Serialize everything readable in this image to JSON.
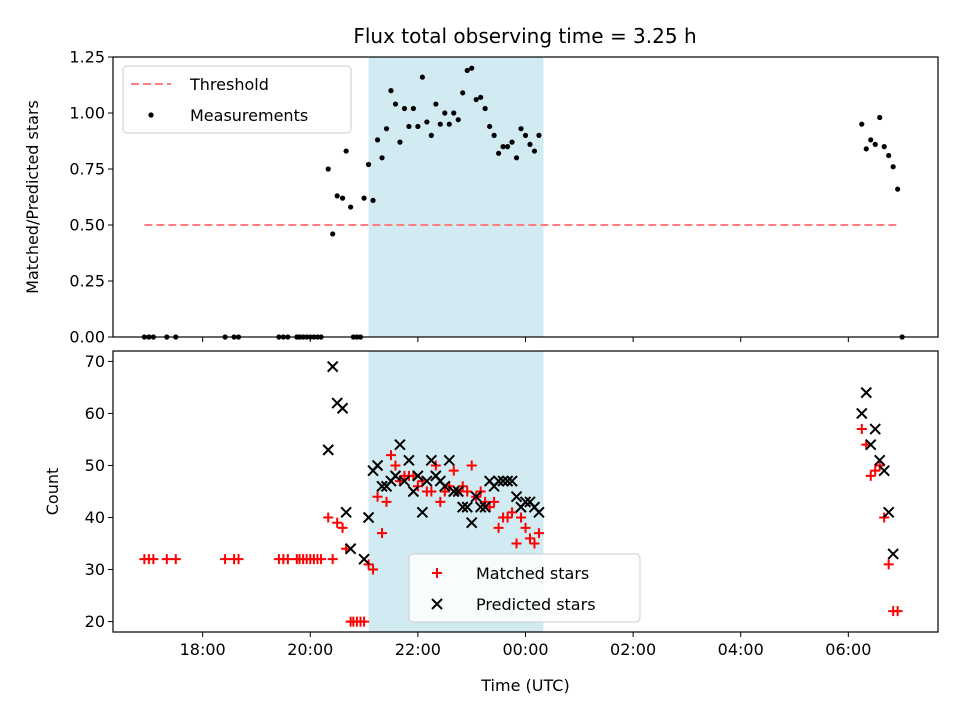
{
  "title": "Flux total observing time = 3.25 h",
  "colors": {
    "threshold": "#ff7f7f",
    "measurement": "#000000",
    "matched": "#ff0000",
    "predicted": "#000000",
    "span_fill": "#add8e6"
  },
  "chart_data": [
    {
      "type": "scatter",
      "ylabel": "Matched/Predicted stars",
      "xlim": [
        "16:20",
        "07:40"
      ],
      "ylim": [
        0,
        1.25
      ],
      "yticks": [
        "0.00",
        "0.25",
        "0.50",
        "0.75",
        "1.00",
        "1.25"
      ],
      "legend": {
        "location": "top-left",
        "entries": [
          "Threshold",
          "Measurements"
        ]
      },
      "highlight_span": [
        "21:05",
        "00:20"
      ],
      "threshold": {
        "name": "Threshold",
        "y": 0.5,
        "x_range": [
          "16:55",
          "06:55"
        ]
      },
      "series": [
        {
          "name": "Measurements",
          "marker": "dot",
          "points": [
            [
              "16:55",
              0
            ],
            [
              "17:00",
              0
            ],
            [
              "17:05",
              0
            ],
            [
              "17:20",
              0
            ],
            [
              "17:30",
              0
            ],
            [
              "18:25",
              0
            ],
            [
              "18:35",
              0
            ],
            [
              "18:40",
              0
            ],
            [
              "19:25",
              0
            ],
            [
              "19:30",
              0
            ],
            [
              "19:35",
              0
            ],
            [
              "19:45",
              0
            ],
            [
              "19:48",
              0
            ],
            [
              "19:52",
              0
            ],
            [
              "19:56",
              0
            ],
            [
              "20:00",
              0
            ],
            [
              "20:04",
              0
            ],
            [
              "20:08",
              0
            ],
            [
              "20:12",
              0
            ],
            [
              "20:20",
              0.75
            ],
            [
              "20:25",
              0.46
            ],
            [
              "20:30",
              0.63
            ],
            [
              "20:36",
              0.62
            ],
            [
              "20:40",
              0.83
            ],
            [
              "20:45",
              0.58
            ],
            [
              "20:48",
              0
            ],
            [
              "20:52",
              0
            ],
            [
              "20:56",
              0
            ],
            [
              "21:00",
              0.62
            ],
            [
              "21:05",
              0.77
            ],
            [
              "21:10",
              0.61
            ],
            [
              "21:15",
              0.88
            ],
            [
              "21:20",
              0.8
            ],
            [
              "21:25",
              0.93
            ],
            [
              "21:30",
              1.1
            ],
            [
              "21:35",
              1.04
            ],
            [
              "21:40",
              0.87
            ],
            [
              "21:45",
              1.02
            ],
            [
              "21:50",
              0.94
            ],
            [
              "21:55",
              1.02
            ],
            [
              "22:00",
              0.94
            ],
            [
              "22:05",
              1.16
            ],
            [
              "22:10",
              0.96
            ],
            [
              "22:15",
              0.9
            ],
            [
              "22:20",
              1.04
            ],
            [
              "22:25",
              0.95
            ],
            [
              "22:30",
              1.0
            ],
            [
              "22:35",
              0.95
            ],
            [
              "22:40",
              1.0
            ],
            [
              "22:45",
              0.97
            ],
            [
              "22:50",
              1.09
            ],
            [
              "22:55",
              1.19
            ],
            [
              "23:00",
              1.2
            ],
            [
              "23:05",
              1.06
            ],
            [
              "23:10",
              1.07
            ],
            [
              "23:15",
              1.02
            ],
            [
              "23:20",
              0.94
            ],
            [
              "23:25",
              0.9
            ],
            [
              "23:30",
              0.82
            ],
            [
              "23:35",
              0.85
            ],
            [
              "23:40",
              0.85
            ],
            [
              "23:45",
              0.87
            ],
            [
              "23:50",
              0.8
            ],
            [
              "23:55",
              0.93
            ],
            [
              "00:00",
              0.9
            ],
            [
              "00:05",
              0.86
            ],
            [
              "00:10",
              0.83
            ],
            [
              "00:15",
              0.9
            ],
            [
              "06:15",
              0.95
            ],
            [
              "06:20",
              0.84
            ],
            [
              "06:25",
              0.88
            ],
            [
              "06:30",
              0.86
            ],
            [
              "06:35",
              0.98
            ],
            [
              "06:40",
              0.85
            ],
            [
              "06:45",
              0.81
            ],
            [
              "06:50",
              0.76
            ],
            [
              "06:55",
              0.66
            ],
            [
              "07:00",
              0
            ]
          ]
        }
      ]
    },
    {
      "type": "scatter",
      "xlabel": "Time (UTC)",
      "ylabel": "Count",
      "xlim": [
        "16:20",
        "07:40"
      ],
      "ylim": [
        18,
        72
      ],
      "xticks": [
        "18:00",
        "20:00",
        "22:00",
        "00:00",
        "02:00",
        "04:00",
        "06:00"
      ],
      "yticks": [
        "20",
        "30",
        "40",
        "50",
        "60",
        "70"
      ],
      "legend": {
        "location": "bottom-center",
        "entries": [
          "Matched stars",
          "Predicted stars"
        ]
      },
      "highlight_span": [
        "21:05",
        "00:20"
      ],
      "series": [
        {
          "name": "Matched stars",
          "marker": "plus",
          "points": [
            [
              "16:55",
              32
            ],
            [
              "17:00",
              32
            ],
            [
              "17:05",
              32
            ],
            [
              "17:20",
              32
            ],
            [
              "17:30",
              32
            ],
            [
              "18:25",
              32
            ],
            [
              "18:35",
              32
            ],
            [
              "18:40",
              32
            ],
            [
              "19:25",
              32
            ],
            [
              "19:30",
              32
            ],
            [
              "19:35",
              32
            ],
            [
              "19:45",
              32
            ],
            [
              "19:48",
              32
            ],
            [
              "19:52",
              32
            ],
            [
              "19:56",
              32
            ],
            [
              "20:00",
              32
            ],
            [
              "20:04",
              32
            ],
            [
              "20:08",
              32
            ],
            [
              "20:12",
              32
            ],
            [
              "20:20",
              40
            ],
            [
              "20:25",
              32
            ],
            [
              "20:30",
              39
            ],
            [
              "20:36",
              38
            ],
            [
              "20:40",
              34
            ],
            [
              "20:45",
              20
            ],
            [
              "20:48",
              20
            ],
            [
              "20:52",
              20
            ],
            [
              "20:56",
              20
            ],
            [
              "21:00",
              20
            ],
            [
              "21:05",
              31
            ],
            [
              "21:10",
              30
            ],
            [
              "21:15",
              44
            ],
            [
              "21:20",
              37
            ],
            [
              "21:25",
              43
            ],
            [
              "21:30",
              52
            ],
            [
              "21:35",
              50
            ],
            [
              "21:40",
              47
            ],
            [
              "21:45",
              48
            ],
            [
              "21:50",
              48
            ],
            [
              "21:55",
              48
            ],
            [
              "22:00",
              46
            ],
            [
              "22:05",
              47
            ],
            [
              "22:10",
              45
            ],
            [
              "22:15",
              45
            ],
            [
              "22:20",
              50
            ],
            [
              "22:25",
              43
            ],
            [
              "22:30",
              45
            ],
            [
              "22:35",
              46
            ],
            [
              "22:40",
              49
            ],
            [
              "22:45",
              45
            ],
            [
              "22:50",
              46
            ],
            [
              "22:55",
              45
            ],
            [
              "23:00",
              50
            ],
            [
              "23:05",
              44
            ],
            [
              "23:10",
              45
            ],
            [
              "23:15",
              43
            ],
            [
              "23:20",
              42
            ],
            [
              "23:25",
              43
            ],
            [
              "23:30",
              38
            ],
            [
              "23:35",
              40
            ],
            [
              "23:40",
              40
            ],
            [
              "23:45",
              41
            ],
            [
              "23:50",
              35
            ],
            [
              "23:55",
              40
            ],
            [
              "00:00",
              38
            ],
            [
              "00:05",
              36
            ],
            [
              "00:10",
              35
            ],
            [
              "00:15",
              37
            ],
            [
              "06:15",
              57
            ],
            [
              "06:20",
              54
            ],
            [
              "06:25",
              48
            ],
            [
              "06:30",
              49
            ],
            [
              "06:35",
              50
            ],
            [
              "06:40",
              40
            ],
            [
              "06:45",
              31
            ],
            [
              "06:50",
              22
            ],
            [
              "06:55",
              22
            ]
          ]
        },
        {
          "name": "Predicted stars",
          "marker": "cross",
          "points": [
            [
              "20:20",
              53
            ],
            [
              "20:25",
              69
            ],
            [
              "20:30",
              62
            ],
            [
              "20:36",
              61
            ],
            [
              "20:40",
              41
            ],
            [
              "20:45",
              34
            ],
            [
              "21:00",
              32
            ],
            [
              "21:05",
              40
            ],
            [
              "21:10",
              49
            ],
            [
              "21:15",
              50
            ],
            [
              "21:20",
              46
            ],
            [
              "21:25",
              46
            ],
            [
              "21:30",
              47
            ],
            [
              "21:35",
              48
            ],
            [
              "21:40",
              54
            ],
            [
              "21:45",
              47
            ],
            [
              "21:50",
              51
            ],
            [
              "21:55",
              45
            ],
            [
              "22:00",
              48
            ],
            [
              "22:05",
              41
            ],
            [
              "22:10",
              47
            ],
            [
              "22:15",
              51
            ],
            [
              "22:20",
              48
            ],
            [
              "22:25",
              47
            ],
            [
              "22:30",
              46
            ],
            [
              "22:35",
              51
            ],
            [
              "22:40",
              45
            ],
            [
              "22:45",
              45
            ],
            [
              "22:50",
              42
            ],
            [
              "22:55",
              42
            ],
            [
              "23:00",
              39
            ],
            [
              "23:05",
              44
            ],
            [
              "23:10",
              42
            ],
            [
              "23:15",
              42
            ],
            [
              "23:20",
              47
            ],
            [
              "23:25",
              46
            ],
            [
              "23:30",
              47
            ],
            [
              "23:35",
              47
            ],
            [
              "23:40",
              47
            ],
            [
              "23:45",
              47
            ],
            [
              "23:50",
              44
            ],
            [
              "23:55",
              42
            ],
            [
              "00:00",
              43
            ],
            [
              "00:05",
              43
            ],
            [
              "00:10",
              42
            ],
            [
              "00:15",
              41
            ],
            [
              "06:15",
              60
            ],
            [
              "06:20",
              64
            ],
            [
              "06:25",
              54
            ],
            [
              "06:30",
              57
            ],
            [
              "06:35",
              51
            ],
            [
              "06:40",
              49
            ],
            [
              "06:45",
              41
            ],
            [
              "06:50",
              33
            ]
          ]
        }
      ]
    }
  ]
}
